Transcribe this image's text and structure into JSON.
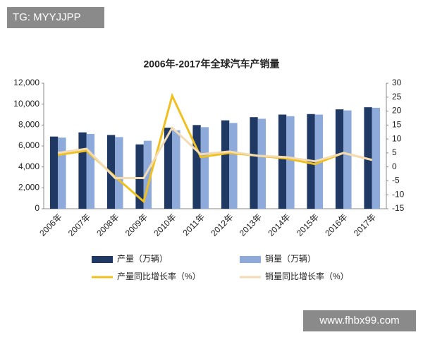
{
  "chart_data": {
    "type": "bar",
    "title": "2006年-2017年全球汽车产销量",
    "categories": [
      "2006年",
      "2007年",
      "2008年",
      "2009年",
      "2010年",
      "2011年",
      "2012年",
      "2013年",
      "2014年",
      "2015年",
      "2016年",
      "2017年"
    ],
    "series": [
      {
        "name": "产量（万辆）",
        "type": "bar",
        "color": "#1f3864",
        "values": [
          6900,
          7300,
          7050,
          6150,
          7750,
          8000,
          8450,
          8750,
          9000,
          9050,
          9500,
          9700
        ]
      },
      {
        "name": "销量（万辆）",
        "type": "bar",
        "color": "#8eaadb",
        "values": [
          6800,
          7150,
          6850,
          6500,
          7500,
          7800,
          8200,
          8600,
          8850,
          9000,
          9400,
          9650
        ]
      },
      {
        "name": "产量同比增长率（%）",
        "type": "line",
        "axis": "y2",
        "color": "#f0c020",
        "values": [
          4.3,
          5.8,
          -3.5,
          -12.4,
          25.5,
          3.5,
          5,
          4,
          3,
          1,
          5,
          2.5
        ]
      },
      {
        "name": "销量同比增长率（%）",
        "type": "line",
        "axis": "y2",
        "color": "#f3dcb4",
        "values": [
          5,
          6.5,
          -4,
          -4,
          14,
          4.5,
          5.5,
          4,
          3.5,
          2,
          5,
          2.5
        ]
      }
    ],
    "ylim": [
      0,
      12000
    ],
    "yticks": [
      0,
      {
        "value": 2000,
        "label": "2,000"
      },
      {
        "value": 4000,
        "label": "4,000"
      },
      {
        "value": 6000,
        "label": "6,000"
      },
      {
        "value": 8000,
        "label": "8,000"
      },
      {
        "value": 10000,
        "label": "10,000"
      },
      {
        "value": 12000,
        "label": "12,000"
      }
    ],
    "y2lim": [
      -15,
      30
    ],
    "y2ticks": [
      -15,
      -10,
      -5,
      0,
      5,
      10,
      15,
      20,
      25,
      30
    ]
  },
  "watermarks": [
    "TG: MYYJJPP",
    "www.fhbx99.com"
  ]
}
